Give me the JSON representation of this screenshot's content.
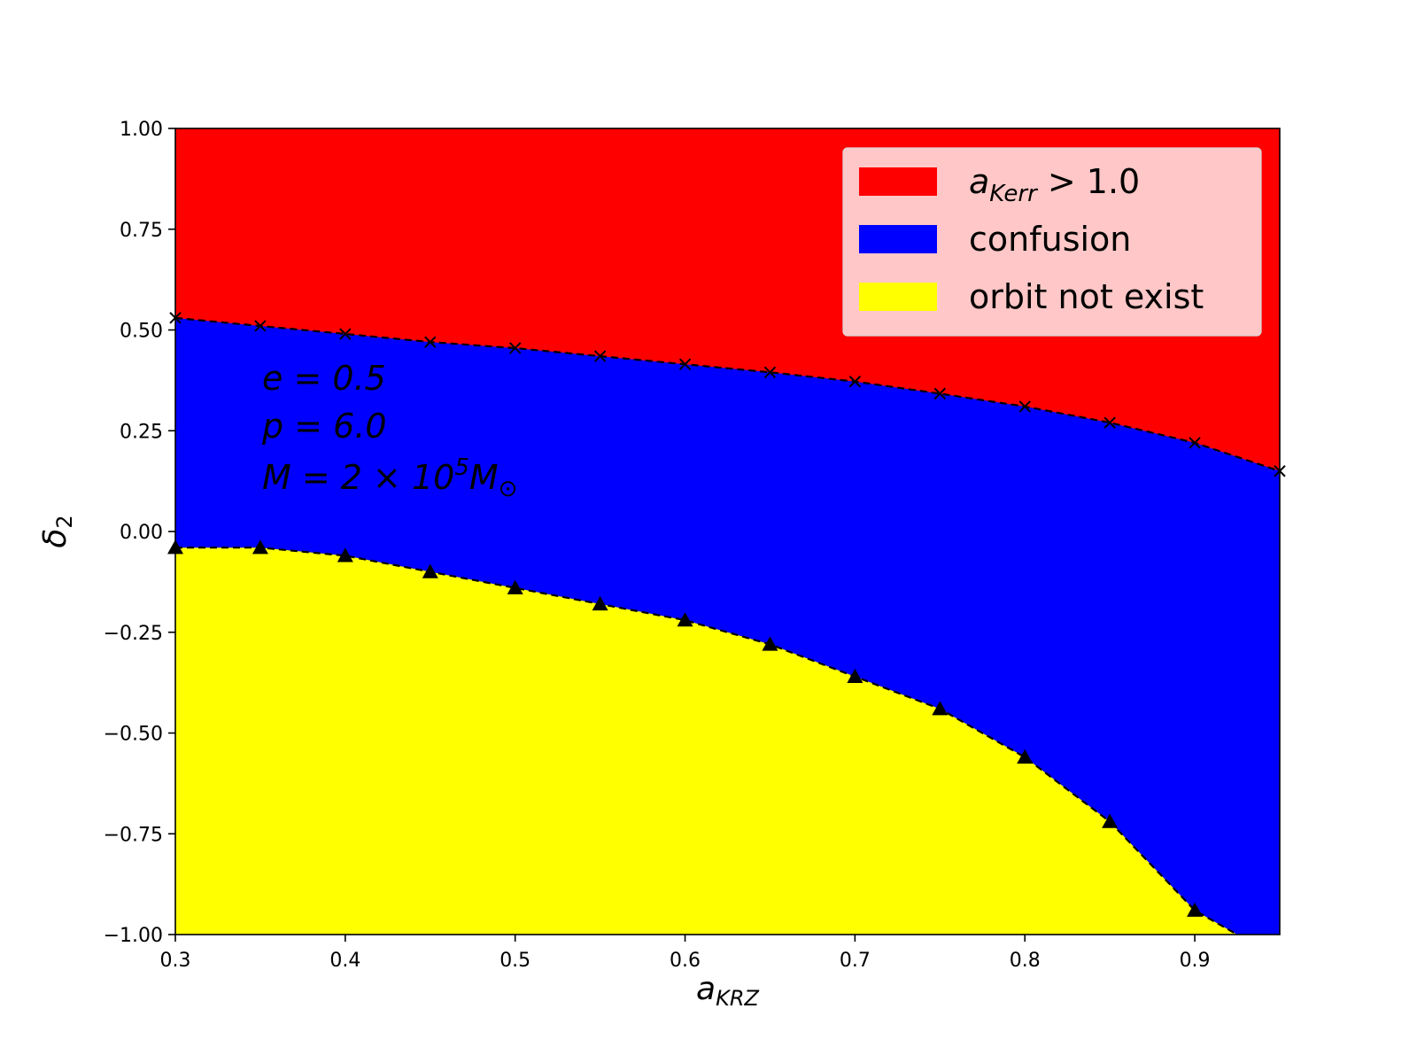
{
  "chart_data": {
    "type": "area",
    "xlabel": "a",
    "xlabel_sub": "KRZ",
    "ylabel": "δ",
    "ylabel_sub": "2",
    "xlim": [
      0.3,
      0.95
    ],
    "ylim": [
      -1.0,
      1.0
    ],
    "x_ticks": [
      "0.3",
      "0.4",
      "0.5",
      "0.6",
      "0.7",
      "0.8",
      "0.9"
    ],
    "y_ticks": [
      "1.00",
      "0.75",
      "0.50",
      "0.25",
      "0.00",
      "−0.25",
      "−0.50",
      "−0.75",
      "−1.00"
    ],
    "grid": false,
    "legend_position": "top-right",
    "series": [
      {
        "name": "a_Kerr > 1.0",
        "legend_main": "a",
        "legend_sub": "Kerr",
        "legend_rest": " > 1.0",
        "color": "#ff0000",
        "region": "above upper boundary"
      },
      {
        "name": "confusion",
        "legend_main": "confusion",
        "legend_sub": "",
        "legend_rest": "",
        "color": "#0000ff",
        "region": "between boundaries"
      },
      {
        "name": "orbit not exist",
        "legend_main": "orbit not exist",
        "legend_sub": "",
        "legend_rest": "",
        "color": "#ffff00",
        "region": "below lower boundary"
      }
    ],
    "upper_boundary": {
      "marker": "x",
      "x": [
        0.3,
        0.35,
        0.4,
        0.45,
        0.5,
        0.55,
        0.6,
        0.65,
        0.7,
        0.75,
        0.8,
        0.85,
        0.9,
        0.95
      ],
      "y": [
        0.53,
        0.51,
        0.49,
        0.47,
        0.455,
        0.435,
        0.415,
        0.395,
        0.372,
        0.342,
        0.31,
        0.27,
        0.22,
        0.15
      ]
    },
    "lower_boundary": {
      "marker": "triangle",
      "x": [
        0.3,
        0.35,
        0.4,
        0.45,
        0.5,
        0.55,
        0.6,
        0.65,
        0.7,
        0.75,
        0.8,
        0.85,
        0.9,
        0.925
      ],
      "y": [
        -0.04,
        -0.04,
        -0.06,
        -0.1,
        -0.14,
        -0.18,
        -0.22,
        -0.28,
        -0.36,
        -0.44,
        -0.56,
        -0.72,
        -0.94,
        -1.0
      ],
      "marker_count": 13
    },
    "annotations": [
      {
        "main": "e = 0.5"
      },
      {
        "main": "p = 6.0"
      },
      {
        "main": "M = 2 × 10",
        "sup": "5",
        "rest": "M",
        "sub": "⊙"
      }
    ]
  }
}
